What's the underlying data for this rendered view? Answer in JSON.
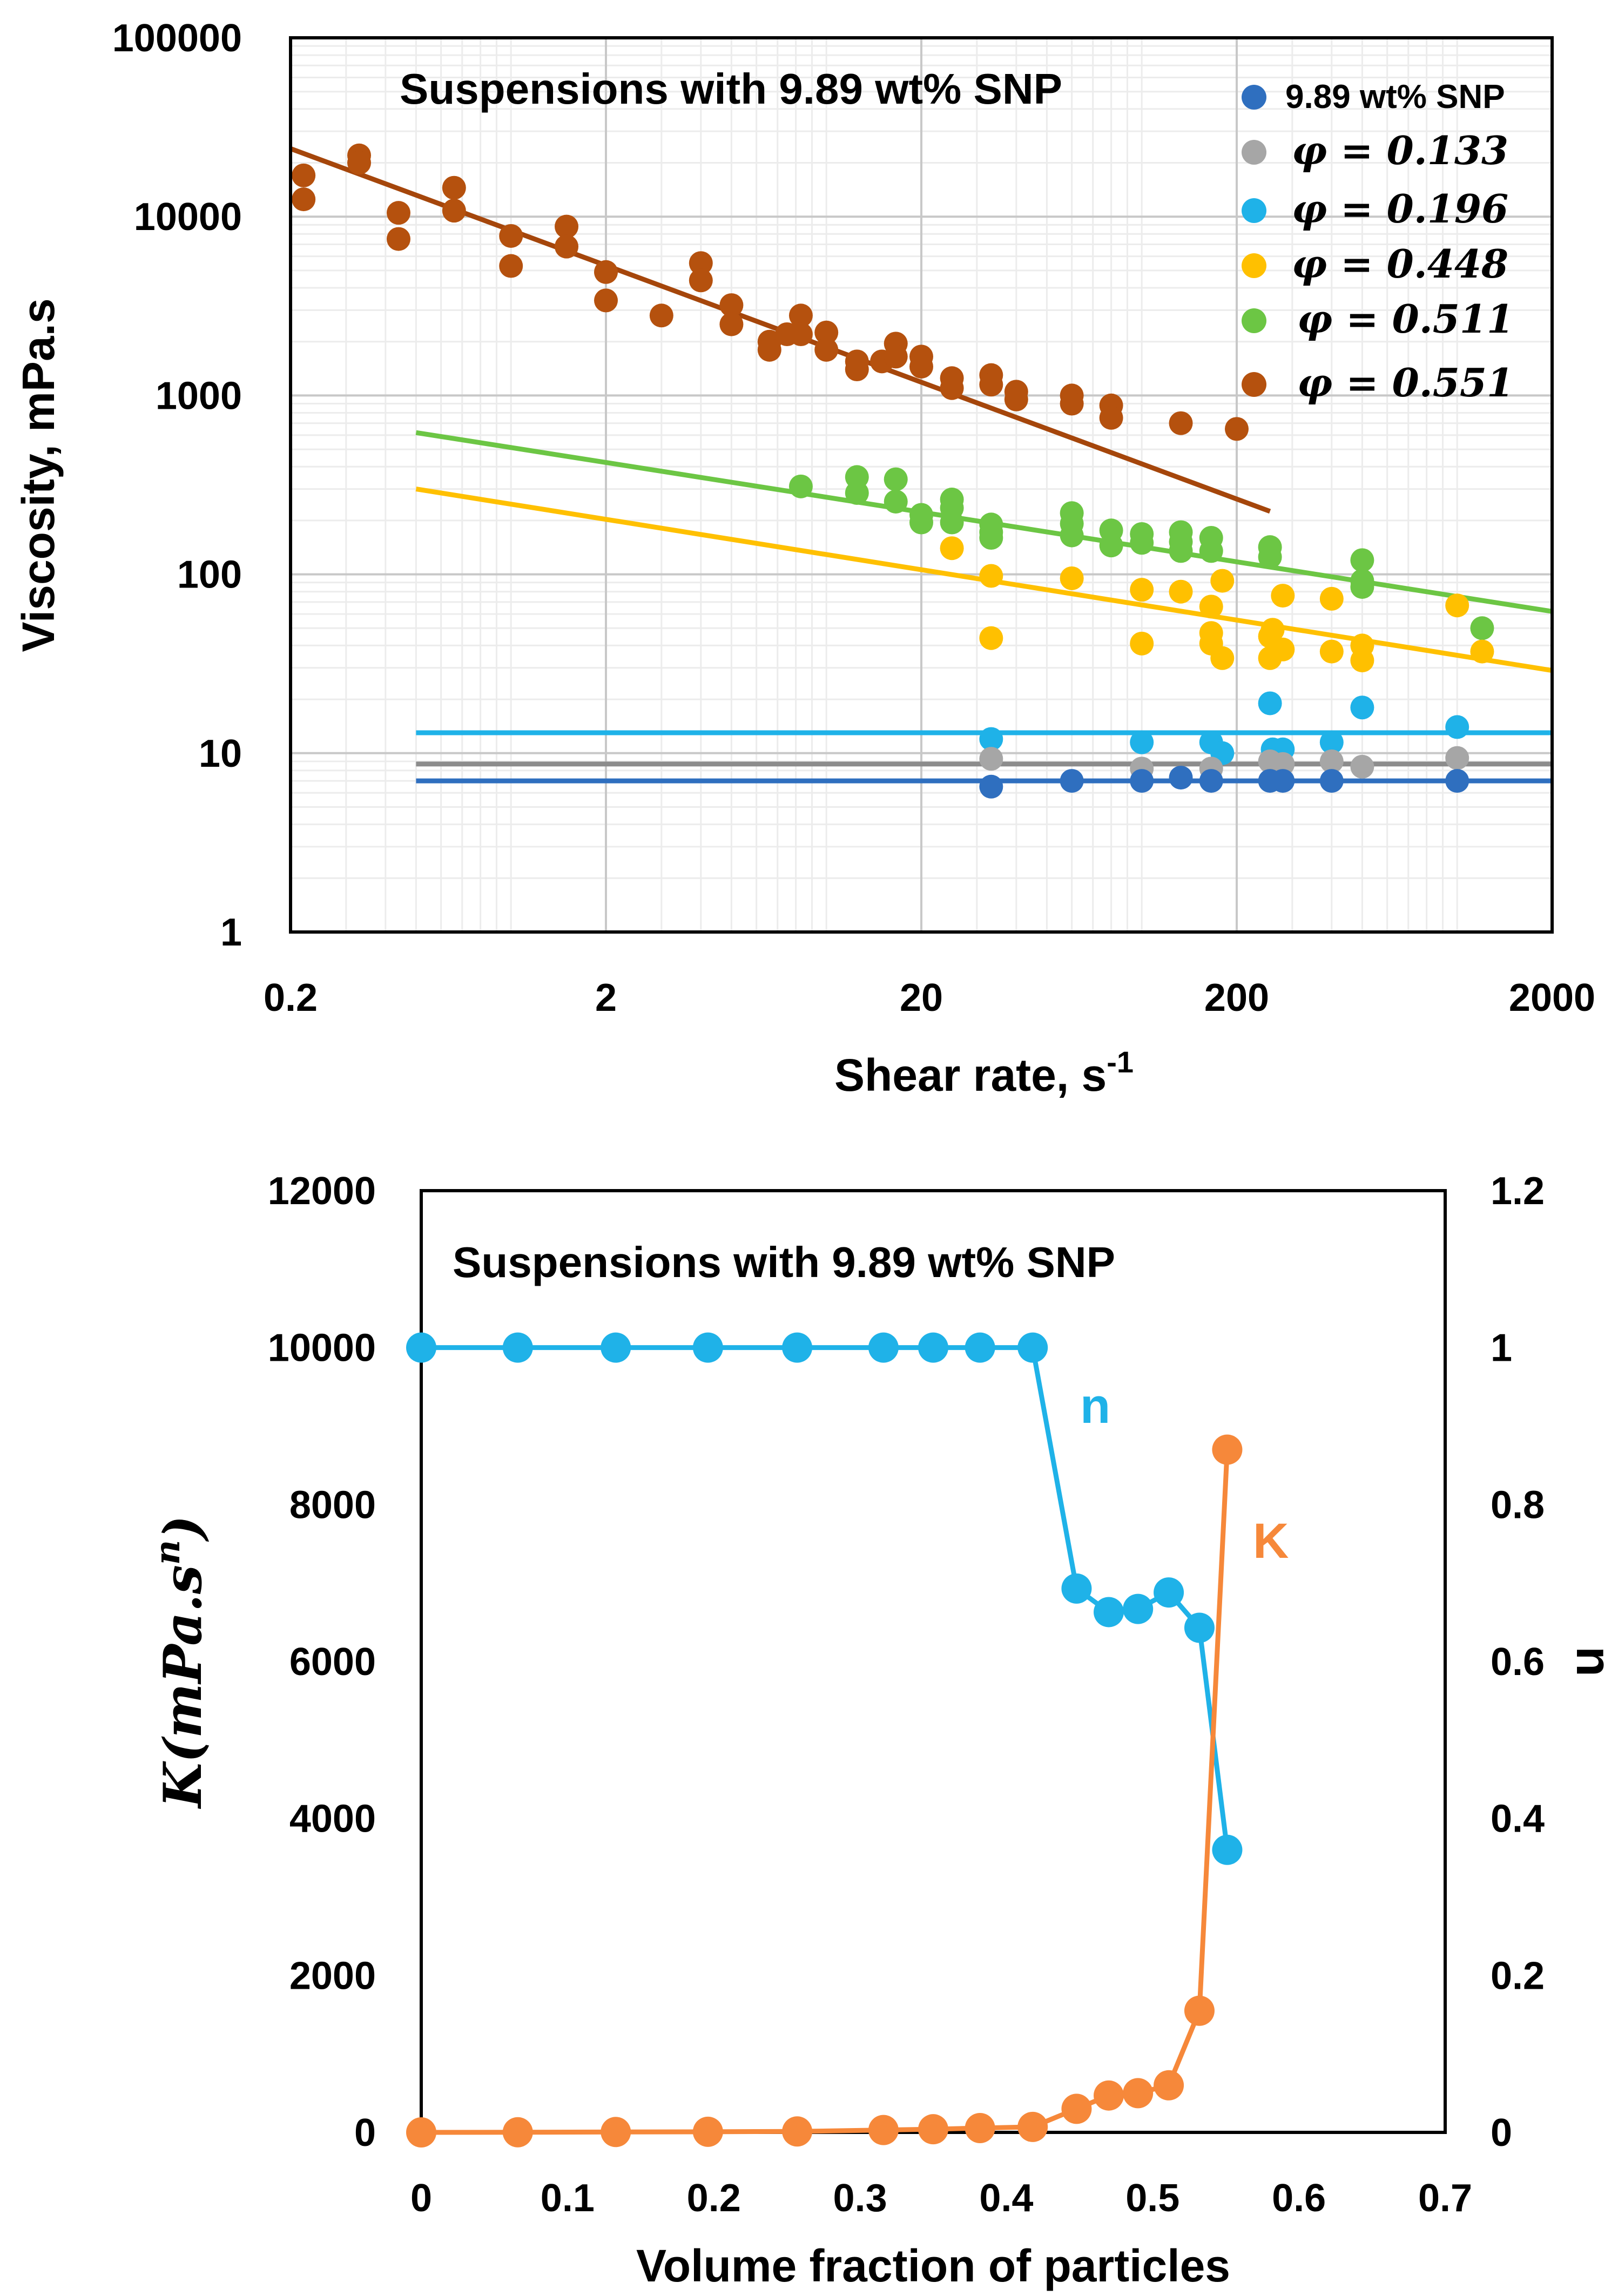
{
  "colors": {
    "snp": "#2f6fbf",
    "phi133": "#a6a6a6",
    "phi133_line": "#8c8c8c",
    "phi196": "#1fb2e8",
    "phi448": "#ffc000",
    "phi511": "#6cc644",
    "phi551": "#b5510e",
    "phi551_line": "#a5460b",
    "n_series": "#1fb2e8",
    "k_series": "#f6883a",
    "grid_major": "#c8c8c8",
    "grid_minor": "#ececec",
    "axis": "#000000"
  },
  "chart_data": [
    {
      "type": "scatter",
      "title": "Suspensions with 9.89 wt% SNP",
      "xlabel": "Shear rate, s",
      "xlabel_sup": "-1",
      "ylabel": "Viscosity, mPa.s",
      "xscale": "log",
      "yscale": "log",
      "xlim": [
        0.2,
        2000
      ],
      "ylim": [
        1,
        100000
      ],
      "xticks": [
        {
          "value": 0.2,
          "label": "0.2"
        },
        {
          "value": 2,
          "label": "2"
        },
        {
          "value": 20,
          "label": "20"
        },
        {
          "value": 200,
          "label": "200"
        },
        {
          "value": 2000,
          "label": "2000"
        }
      ],
      "yticks": [
        {
          "value": 1,
          "label": "1"
        },
        {
          "value": 10,
          "label": "10"
        },
        {
          "value": 100,
          "label": "100"
        },
        {
          "value": 1000,
          "label": "1000"
        },
        {
          "value": 10000,
          "label": "10000"
        },
        {
          "value": 100000,
          "label": "100000"
        }
      ],
      "grid": true,
      "legend_position": "top-right",
      "series": [
        {
          "key": "snp",
          "name": "9.89 wt% SNP",
          "color_key": "snp",
          "line_color_key": "snp",
          "fit": {
            "x": [
              0.5,
              2000
            ],
            "y": [
              7,
              7
            ]
          },
          "points": [
            [
              33.3,
              6.5
            ],
            [
              60,
              7
            ],
            [
              100,
              7
            ],
            [
              133,
              7.3
            ],
            [
              166,
              7
            ],
            [
              255,
              7
            ],
            [
              280,
              7
            ],
            [
              400,
              7
            ],
            [
              1000,
              7
            ]
          ]
        },
        {
          "key": "phi133",
          "name": "φ = 0.133",
          "color_key": "phi133",
          "line_color_key": "phi133_line",
          "fit": {
            "x": [
              0.5,
              2000
            ],
            "y": [
              8.7,
              8.7
            ]
          },
          "points": [
            [
              33.3,
              9.3
            ],
            [
              100,
              8.2
            ],
            [
              166,
              8.2
            ],
            [
              255,
              9
            ],
            [
              280,
              8.7
            ],
            [
              400,
              9
            ],
            [
              500,
              8.4
            ],
            [
              1000,
              9.4
            ]
          ]
        },
        {
          "key": "phi196",
          "name": "φ = 0.196",
          "color_key": "phi196",
          "line_color_key": "phi196",
          "fit": {
            "x": [
              0.5,
              2000
            ],
            "y": [
              13,
              13
            ]
          },
          "points": [
            [
              33.3,
              12
            ],
            [
              100,
              11.5
            ],
            [
              166,
              11.5
            ],
            [
              180,
              10
            ],
            [
              255,
              19
            ],
            [
              260,
              10.5
            ],
            [
              280,
              10.5
            ],
            [
              400,
              11.5
            ],
            [
              500,
              18
            ],
            [
              1000,
              14
            ]
          ]
        },
        {
          "key": "phi448",
          "name": "φ = 0.448",
          "color_key": "phi448",
          "line_color_key": "phi448",
          "fit": {
            "x": [
              0.5,
              2000
            ],
            "y": [
              300,
              29
            ]
          },
          "points": [
            [
              25,
              140
            ],
            [
              33.3,
              98
            ],
            [
              33.3,
              44
            ],
            [
              60,
              95
            ],
            [
              100,
              82
            ],
            [
              100,
              41
            ],
            [
              133,
              80
            ],
            [
              166,
              66
            ],
            [
              166,
              47
            ],
            [
              166,
              41
            ],
            [
              180,
              92
            ],
            [
              180,
              34
            ],
            [
              255,
              45
            ],
            [
              255,
              34
            ],
            [
              260,
              49
            ],
            [
              280,
              76
            ],
            [
              280,
              38
            ],
            [
              400,
              73
            ],
            [
              400,
              37
            ],
            [
              500,
              40
            ],
            [
              500,
              33
            ],
            [
              1000,
              67
            ],
            [
              1200,
              37
            ]
          ]
        },
        {
          "key": "phi511",
          "name": "φ = 0.511",
          "color_key": "phi511",
          "line_color_key": "phi511",
          "fit": {
            "x": [
              0.5,
              2000
            ],
            "y": [
              620,
              62
            ]
          },
          "points": [
            [
              8.3,
              310
            ],
            [
              12.5,
              350
            ],
            [
              12.5,
              285
            ],
            [
              16.6,
              340
            ],
            [
              16.6,
              255
            ],
            [
              20,
              215
            ],
            [
              20,
              195
            ],
            [
              25,
              262
            ],
            [
              25,
              235
            ],
            [
              25,
              195
            ],
            [
              33.3,
              190
            ],
            [
              33.3,
              172
            ],
            [
              33.3,
              160
            ],
            [
              60,
              220
            ],
            [
              60,
              192
            ],
            [
              60,
              165
            ],
            [
              80,
              176
            ],
            [
              80,
              145
            ],
            [
              100,
              168
            ],
            [
              100,
              150
            ],
            [
              133,
              172
            ],
            [
              133,
              152
            ],
            [
              133,
              135
            ],
            [
              166,
              160
            ],
            [
              166,
              135
            ],
            [
              255,
              142
            ],
            [
              255,
              125
            ],
            [
              500,
              120
            ],
            [
              500,
              92
            ],
            [
              500,
              85
            ],
            [
              1200,
              50
            ]
          ]
        },
        {
          "key": "phi551",
          "name": "φ = 0.551",
          "color_key": "phi551",
          "line_color_key": "phi551_line",
          "fit": {
            "x": [
              0.2,
              255
            ],
            "y": [
              24000,
              225
            ]
          },
          "points": [
            [
              0.22,
              17000
            ],
            [
              0.22,
              12500
            ],
            [
              0.33,
              22000
            ],
            [
              0.33,
              20000
            ],
            [
              0.44,
              10500
            ],
            [
              0.44,
              7500
            ],
            [
              0.66,
              14500
            ],
            [
              0.66,
              10800
            ],
            [
              1,
              7800
            ],
            [
              1,
              5300
            ],
            [
              1.5,
              8800
            ],
            [
              1.5,
              6800
            ],
            [
              2,
              4900
            ],
            [
              2,
              3400
            ],
            [
              3,
              2800
            ],
            [
              4,
              5500
            ],
            [
              4,
              4400
            ],
            [
              5,
              3200
            ],
            [
              5,
              2500
            ],
            [
              6.6,
              2000
            ],
            [
              6.6,
              1800
            ],
            [
              7.5,
              2200
            ],
            [
              8.3,
              2800
            ],
            [
              8.3,
              2200
            ],
            [
              10,
              2250
            ],
            [
              10,
              1800
            ],
            [
              12.5,
              1550
            ],
            [
              12.5,
              1400
            ],
            [
              15,
              1550
            ],
            [
              16.6,
              1950
            ],
            [
              16.6,
              1650
            ],
            [
              20,
              1650
            ],
            [
              20,
              1450
            ],
            [
              25,
              1250
            ],
            [
              25,
              1100
            ],
            [
              33.3,
              1300
            ],
            [
              33.3,
              1150
            ],
            [
              40,
              1050
            ],
            [
              40,
              950
            ],
            [
              60,
              1000
            ],
            [
              60,
              900
            ],
            [
              80,
              880
            ],
            [
              80,
              750
            ],
            [
              133,
              700
            ],
            [
              200,
              650
            ]
          ]
        }
      ]
    },
    {
      "type": "line",
      "title": "Suspensions with 9.89 wt% SNP",
      "xlabel": "Volume fraction of particles",
      "ylabel_left_math": "K(mPa.s^n)",
      "ylabel_right": "n",
      "xlim": [
        0,
        0.7
      ],
      "ylim_left": [
        0,
        12000
      ],
      "ylim_right": [
        0,
        1.2
      ],
      "xticks": [
        {
          "value": 0,
          "label": "0"
        },
        {
          "value": 0.1,
          "label": "0.1"
        },
        {
          "value": 0.2,
          "label": "0.2"
        },
        {
          "value": 0.3,
          "label": "0.3"
        },
        {
          "value": 0.4,
          "label": "0.4"
        },
        {
          "value": 0.5,
          "label": "0.5"
        },
        {
          "value": 0.6,
          "label": "0.6"
        },
        {
          "value": 0.7,
          "label": "0.7"
        }
      ],
      "yticks_left": [
        {
          "value": 0,
          "label": "0"
        },
        {
          "value": 2000,
          "label": "2000"
        },
        {
          "value": 4000,
          "label": "4000"
        },
        {
          "value": 6000,
          "label": "6000"
        },
        {
          "value": 8000,
          "label": "8000"
        },
        {
          "value": 10000,
          "label": "10000"
        },
        {
          "value": 12000,
          "label": "12000"
        }
      ],
      "yticks_right": [
        {
          "value": 0,
          "label": "0"
        },
        {
          "value": 0.2,
          "label": "0.2"
        },
        {
          "value": 0.4,
          "label": "0.4"
        },
        {
          "value": 0.6,
          "label": "0.6"
        },
        {
          "value": 0.8,
          "label": "0.8"
        },
        {
          "value": 1,
          "label": "1"
        },
        {
          "value": 1.2,
          "label": "1.2"
        }
      ],
      "grid": false,
      "x": [
        0,
        0.066,
        0.133,
        0.196,
        0.257,
        0.316,
        0.35,
        0.382,
        0.418,
        0.448,
        0.47,
        0.49,
        0.511,
        0.532,
        0.551
      ],
      "series": [
        {
          "key": "n",
          "name": "n",
          "axis": "right",
          "color_key": "n_series",
          "values": [
            1,
            1,
            1,
            1,
            1,
            1,
            1,
            1,
            1,
            0.693,
            0.663,
            0.667,
            0.688,
            0.643,
            0.36
          ]
        },
        {
          "key": "K",
          "name": "K",
          "axis": "left",
          "color_key": "k_series",
          "values": [
            0,
            2,
            5,
            8,
            12,
            30,
            40,
            55,
            70,
            300,
            470,
            500,
            600,
            1550,
            8700
          ]
        }
      ],
      "annotations": [
        {
          "text": "n",
          "series": "n"
        },
        {
          "text": "K",
          "series": "K"
        }
      ]
    }
  ]
}
